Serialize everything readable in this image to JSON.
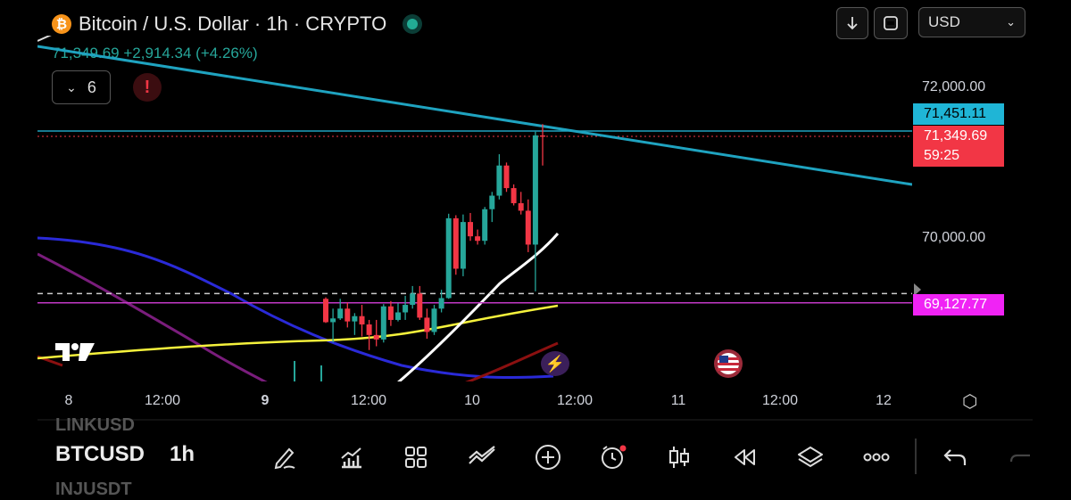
{
  "header": {
    "symbol_logo": "₿",
    "title": "Bitcoin / U.S. Dollar · 1h · CRYPTO",
    "quote": "71,349.69 +2,914.34 (+4.26%)"
  },
  "toolbar": {
    "download_icon": "arrow-down-icon",
    "fullscreen_icon": "fullscreen-icon",
    "currency": "USD"
  },
  "indicators": {
    "count": "6"
  },
  "price_axis": {
    "labels": [
      "72,000.00",
      "70,000.00"
    ],
    "tag_cyan": "71,451.11",
    "tag_red_price": "71,349.69",
    "tag_red_countdown": "59:25",
    "tag_magenta": "69,127.77"
  },
  "time_axis": {
    "labels": [
      {
        "text": "8",
        "bold": false
      },
      {
        "text": "12:00",
        "bold": false
      },
      {
        "text": "9",
        "bold": true
      },
      {
        "text": "12:00",
        "bold": false
      },
      {
        "text": "10",
        "bold": false
      },
      {
        "text": "12:00",
        "bold": false
      },
      {
        "text": "11",
        "bold": false
      },
      {
        "text": "12:00",
        "bold": false
      },
      {
        "text": "12",
        "bold": false
      }
    ]
  },
  "bottom_bar": {
    "symbol": "BTCUSD",
    "interval": "1h",
    "watchlist_prev": "LINKUSD",
    "watchlist_next": "INJUSDT"
  },
  "colors": {
    "up": "#26a69a",
    "down": "#f23645",
    "trendline": "#1fa3c0",
    "ma_yellow": "#f5f23c",
    "ma_white": "#ffffff",
    "ma_blue": "#2a2ad8",
    "ma_purple": "#7a1d7c",
    "ma_darkred": "#8b1010"
  },
  "chart_data": {
    "type": "candlestick",
    "candles": [
      {
        "o": 69180,
        "h": 69200,
        "l": 68860,
        "c": 68870
      },
      {
        "o": 68870,
        "h": 69050,
        "l": 68600,
        "c": 68920
      },
      {
        "o": 68920,
        "h": 69180,
        "l": 68900,
        "c": 69050
      },
      {
        "o": 69050,
        "h": 69130,
        "l": 68800,
        "c": 68880
      },
      {
        "o": 68880,
        "h": 68990,
        "l": 68700,
        "c": 68950
      },
      {
        "o": 68950,
        "h": 69100,
        "l": 68680,
        "c": 68840
      },
      {
        "o": 68840,
        "h": 68900,
        "l": 68500,
        "c": 68700
      },
      {
        "o": 68700,
        "h": 68900,
        "l": 68550,
        "c": 68640
      },
      {
        "o": 68640,
        "h": 69110,
        "l": 68600,
        "c": 69080
      },
      {
        "o": 69080,
        "h": 69150,
        "l": 68820,
        "c": 68900
      },
      {
        "o": 68900,
        "h": 69120,
        "l": 68880,
        "c": 69000
      },
      {
        "o": 69000,
        "h": 69220,
        "l": 68900,
        "c": 69100
      },
      {
        "o": 69100,
        "h": 69350,
        "l": 69050,
        "c": 69250
      },
      {
        "o": 69250,
        "h": 69350,
        "l": 68900,
        "c": 68930
      },
      {
        "o": 68930,
        "h": 69050,
        "l": 68650,
        "c": 68740
      },
      {
        "o": 68740,
        "h": 69100,
        "l": 68700,
        "c": 69050
      },
      {
        "o": 69050,
        "h": 69300,
        "l": 69000,
        "c": 69190
      },
      {
        "o": 69190,
        "h": 70310,
        "l": 69180,
        "c": 70250
      },
      {
        "o": 70250,
        "h": 70290,
        "l": 69500,
        "c": 69580
      },
      {
        "o": 69580,
        "h": 70300,
        "l": 69480,
        "c": 70200
      },
      {
        "o": 70200,
        "h": 70320,
        "l": 69950,
        "c": 70010
      },
      {
        "o": 70010,
        "h": 70100,
        "l": 69900,
        "c": 69950
      },
      {
        "o": 69950,
        "h": 70400,
        "l": 69900,
        "c": 70370
      },
      {
        "o": 70370,
        "h": 70600,
        "l": 70200,
        "c": 70550
      },
      {
        "o": 70550,
        "h": 71100,
        "l": 70500,
        "c": 70950
      },
      {
        "o": 70950,
        "h": 70990,
        "l": 70600,
        "c": 70650
      },
      {
        "o": 70650,
        "h": 70700,
        "l": 70420,
        "c": 70450
      },
      {
        "o": 70450,
        "h": 70600,
        "l": 70300,
        "c": 70350
      },
      {
        "o": 70350,
        "h": 70500,
        "l": 69800,
        "c": 69900
      },
      {
        "o": 69900,
        "h": 71400,
        "l": 69280,
        "c": 71350
      },
      {
        "o": 71350,
        "h": 71500,
        "l": 70950,
        "c": 71349.69
      }
    ],
    "ylim": [
      68500,
      72400
    ],
    "trendline_label": "71,451.11",
    "last_price": 71349.69,
    "level_dashed": 69250,
    "level_magenta": 69127.77
  }
}
